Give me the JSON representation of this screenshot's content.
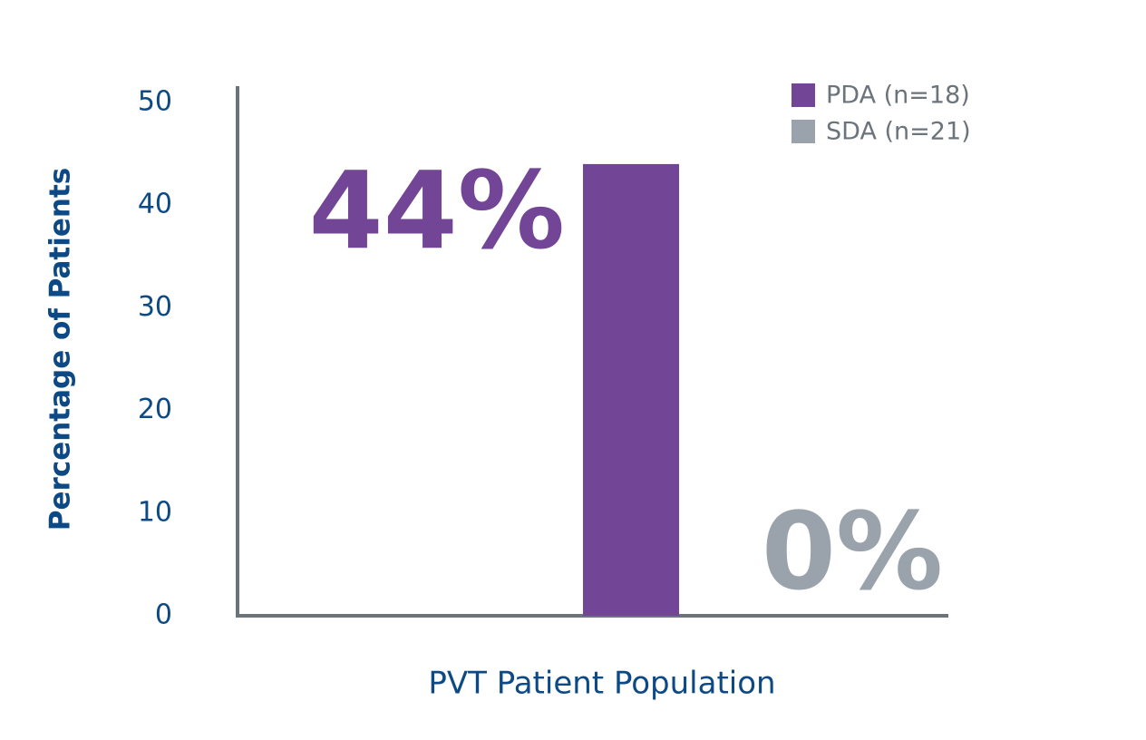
{
  "chart_data": {
    "type": "bar",
    "x_label": "PVT Patient Population",
    "y_label": "Percentage of Patients",
    "categories": [
      null
    ],
    "series": [
      {
        "name": "PDA (n=18)",
        "color": "#734596",
        "values": [
          44
        ],
        "value_labels": [
          "44%"
        ]
      },
      {
        "name": "SDA (n=21)",
        "color": "#9aa3ab",
        "values": [
          0
        ],
        "value_labels": [
          "0%"
        ]
      }
    ],
    "ylim": [
      0,
      50
    ],
    "yticks": [
      0,
      10,
      20,
      30,
      40,
      50
    ],
    "grid": false,
    "legend": "upper right"
  }
}
